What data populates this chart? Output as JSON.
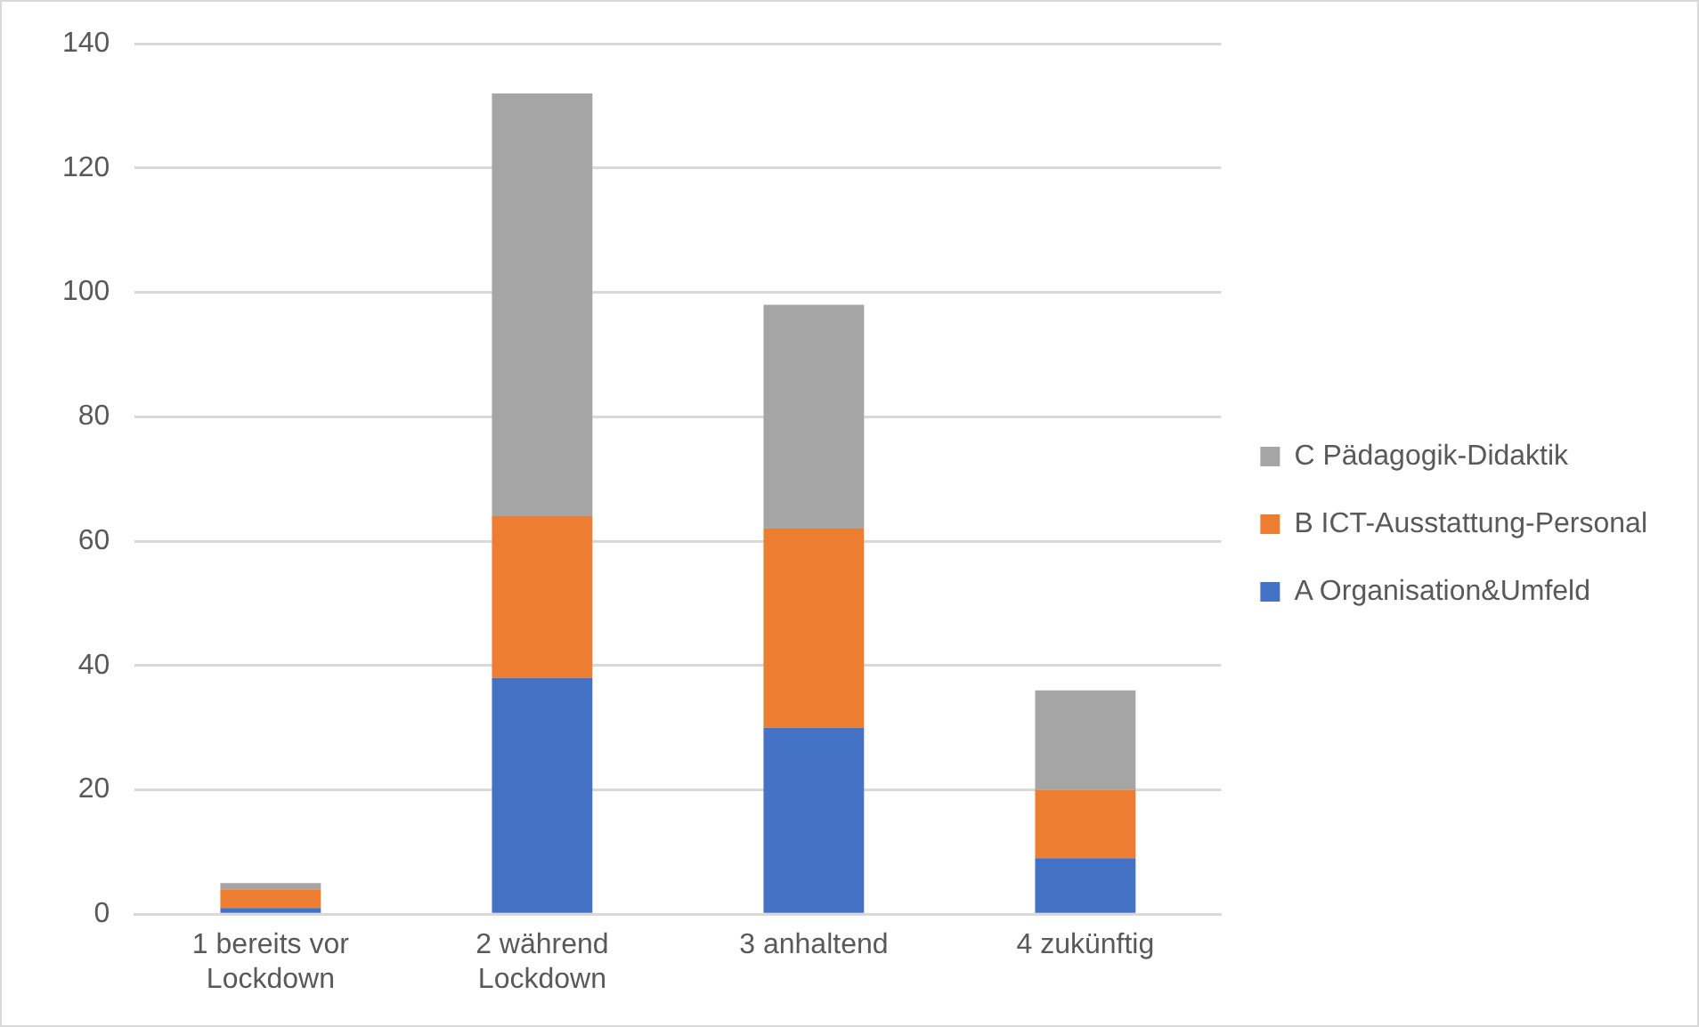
{
  "chart_data": {
    "type": "bar",
    "stacked": true,
    "categories": [
      "1 bereits vor Lockdown",
      "2 während Lockdown",
      "3 anhaltend",
      "4 zukünftig"
    ],
    "series": [
      {
        "name": "A Organisation&Umfeld",
        "color": "#4472c4",
        "values": [
          1,
          38,
          30,
          9
        ]
      },
      {
        "name": "B ICT-Ausstattung-Personal",
        "color": "#ed7d31",
        "values": [
          3,
          26,
          32,
          11
        ]
      },
      {
        "name": "C Pädagogik-Didaktik",
        "color": "#a5a5a5",
        "values": [
          1,
          68,
          36,
          16
        ]
      }
    ],
    "ylim": [
      0,
      140
    ],
    "yticks": [
      0,
      20,
      40,
      60,
      80,
      100,
      120,
      140
    ],
    "grid": "y",
    "legend": "right"
  }
}
